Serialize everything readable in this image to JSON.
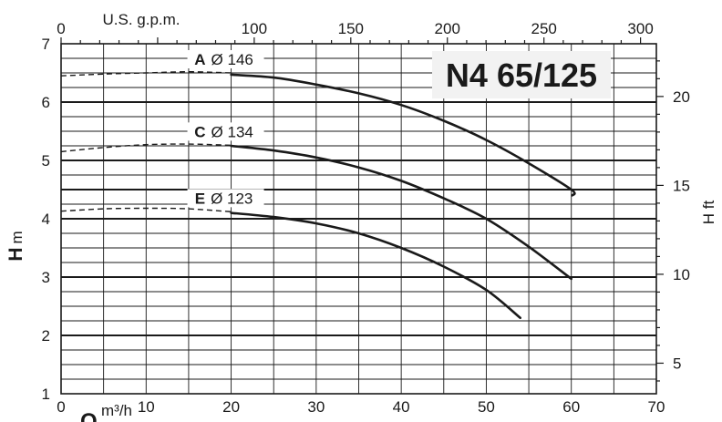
{
  "chart_data": {
    "type": "line",
    "title": "N4 65/125",
    "colors": {
      "line": "#1a1a1a",
      "title_box": "#f2f2f2"
    },
    "x_bottom": {
      "label_q": "Q",
      "label_unit": "m³/h",
      "range": [
        0,
        70
      ],
      "ticks": [
        "0",
        "10",
        "20",
        "30",
        "40",
        "50",
        "60",
        "70"
      ]
    },
    "x_top": {
      "label": "U.S. g.p.m.",
      "ticks": [
        "0",
        "100",
        "150",
        "200",
        "250",
        "300"
      ],
      "tick_values": [
        0,
        100,
        150,
        200,
        250,
        300
      ]
    },
    "y_left": {
      "label_h": "H",
      "label_unit": "m",
      "range": [
        1,
        7
      ],
      "ticks": [
        "1",
        "2",
        "3",
        "4",
        "5",
        "6",
        "7"
      ]
    },
    "y_right": {
      "label": "H ft",
      "ticks": [
        "5",
        "10",
        "15",
        "20"
      ],
      "tick_values": [
        5,
        10,
        15,
        20
      ]
    },
    "grid": true,
    "series": [
      {
        "letter": "A",
        "diameter": "Ø 146",
        "dashed": [
          [
            0,
            6.45
          ],
          [
            5,
            6.48
          ],
          [
            10,
            6.5
          ],
          [
            15,
            6.52
          ],
          [
            20,
            6.5
          ]
        ],
        "solid": [
          [
            20,
            6.47
          ],
          [
            25,
            6.42
          ],
          [
            30,
            6.3
          ],
          [
            35,
            6.15
          ],
          [
            40,
            5.95
          ],
          [
            45,
            5.68
          ],
          [
            50,
            5.35
          ],
          [
            55,
            4.95
          ],
          [
            60,
            4.5
          ],
          [
            60.1,
            4.4
          ]
        ]
      },
      {
        "letter": "C",
        "diameter": "Ø 134",
        "dashed": [
          [
            0,
            5.15
          ],
          [
            5,
            5.22
          ],
          [
            10,
            5.27
          ],
          [
            15,
            5.28
          ],
          [
            20,
            5.26
          ]
        ],
        "solid": [
          [
            20,
            5.25
          ],
          [
            25,
            5.17
          ],
          [
            30,
            5.05
          ],
          [
            35,
            4.88
          ],
          [
            40,
            4.65
          ],
          [
            45,
            4.35
          ],
          [
            50,
            4.0
          ],
          [
            55,
            3.52
          ],
          [
            60,
            2.97
          ]
        ]
      },
      {
        "letter": "E",
        "diameter": "Ø 123",
        "dashed": [
          [
            0,
            4.13
          ],
          [
            5,
            4.17
          ],
          [
            10,
            4.18
          ],
          [
            15,
            4.17
          ],
          [
            20,
            4.12
          ]
        ],
        "solid": [
          [
            20,
            4.1
          ],
          [
            25,
            4.03
          ],
          [
            30,
            3.92
          ],
          [
            35,
            3.75
          ],
          [
            40,
            3.5
          ],
          [
            45,
            3.18
          ],
          [
            50,
            2.78
          ],
          [
            54,
            2.3
          ]
        ]
      }
    ]
  }
}
